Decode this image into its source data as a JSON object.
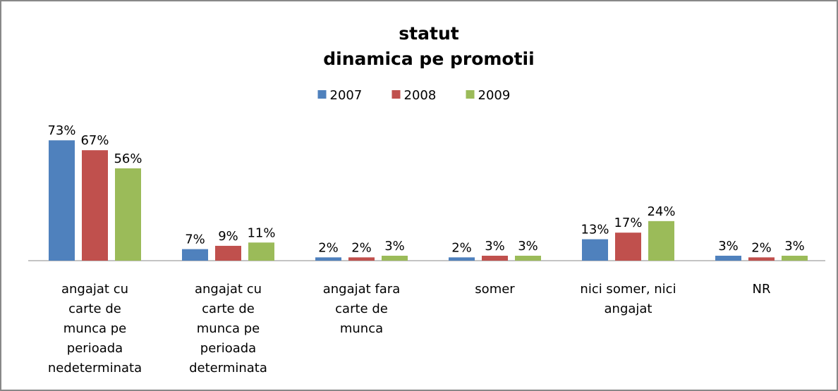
{
  "chart_data": {
    "type": "bar",
    "title": "statut",
    "subtitle": "dinamica pe promotii",
    "categories": [
      "angajat cu\ncarte de\nmunca pe\nperioada\nnedeterminata",
      "angajat cu\ncarte de\nmunca pe\nperioada\ndeterminata",
      "angajat fara\ncarte de\nmunca",
      "somer",
      "nici somer, nici\nangajat",
      "NR"
    ],
    "series": [
      {
        "name": "2007",
        "color": "#4f81bd",
        "values": [
          73,
          7,
          2,
          2,
          13,
          3
        ],
        "value_labels": [
          "73%",
          "7%",
          "2%",
          "2%",
          "13%",
          "3%"
        ]
      },
      {
        "name": "2008",
        "color": "#c0504d",
        "values": [
          67,
          9,
          2,
          3,
          17,
          2
        ],
        "value_labels": [
          "67%",
          "9%",
          "2%",
          "3%",
          "17%",
          "2%"
        ]
      },
      {
        "name": "2009",
        "color": "#9bbb59",
        "values": [
          56,
          11,
          3,
          3,
          24,
          3
        ],
        "value_labels": [
          "56%",
          "11%",
          "3%",
          "3%",
          "24%",
          "3%"
        ]
      }
    ],
    "legend": "top"
  }
}
